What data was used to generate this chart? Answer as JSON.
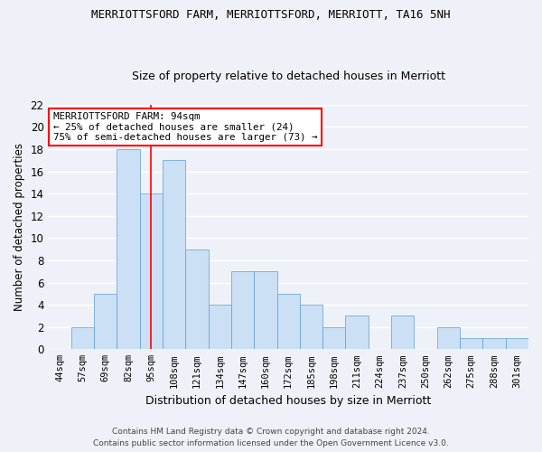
{
  "title": "MERRIOTTSFORD FARM, MERRIOTTSFORD, MERRIOTT, TA16 5NH",
  "subtitle": "Size of property relative to detached houses in Merriott",
  "xlabel": "Distribution of detached houses by size in Merriott",
  "ylabel": "Number of detached properties",
  "bar_color": "#cce0f5",
  "bar_edge_color": "#5b9bd5",
  "categories": [
    "44sqm",
    "57sqm",
    "69sqm",
    "82sqm",
    "95sqm",
    "108sqm",
    "121sqm",
    "134sqm",
    "147sqm",
    "160sqm",
    "172sqm",
    "185sqm",
    "198sqm",
    "211sqm",
    "224sqm",
    "237sqm",
    "250sqm",
    "262sqm",
    "275sqm",
    "288sqm",
    "301sqm"
  ],
  "values": [
    0,
    2,
    5,
    18,
    14,
    17,
    9,
    4,
    7,
    7,
    5,
    4,
    2,
    3,
    0,
    3,
    0,
    2,
    1,
    1,
    1
  ],
  "ylim": [
    0,
    22
  ],
  "yticks": [
    0,
    2,
    4,
    6,
    8,
    10,
    12,
    14,
    16,
    18,
    20,
    22
  ],
  "vline_x_index": 4,
  "annotation_line1": "MERRIOTTSFORD FARM: 94sqm",
  "annotation_line2": "← 25% of detached houses are smaller (24)",
  "annotation_line3": "75% of semi-detached houses are larger (73) →",
  "annotation_box_color": "white",
  "annotation_box_edge_color": "red",
  "vline_color": "red",
  "footer_line1": "Contains HM Land Registry data © Crown copyright and database right 2024.",
  "footer_line2": "Contains public sector information licensed under the Open Government Licence v3.0.",
  "background_color": "#eef2f8",
  "grid_color": "#ffffff",
  "title_fontsize": 9,
  "subtitle_fontsize": 9
}
